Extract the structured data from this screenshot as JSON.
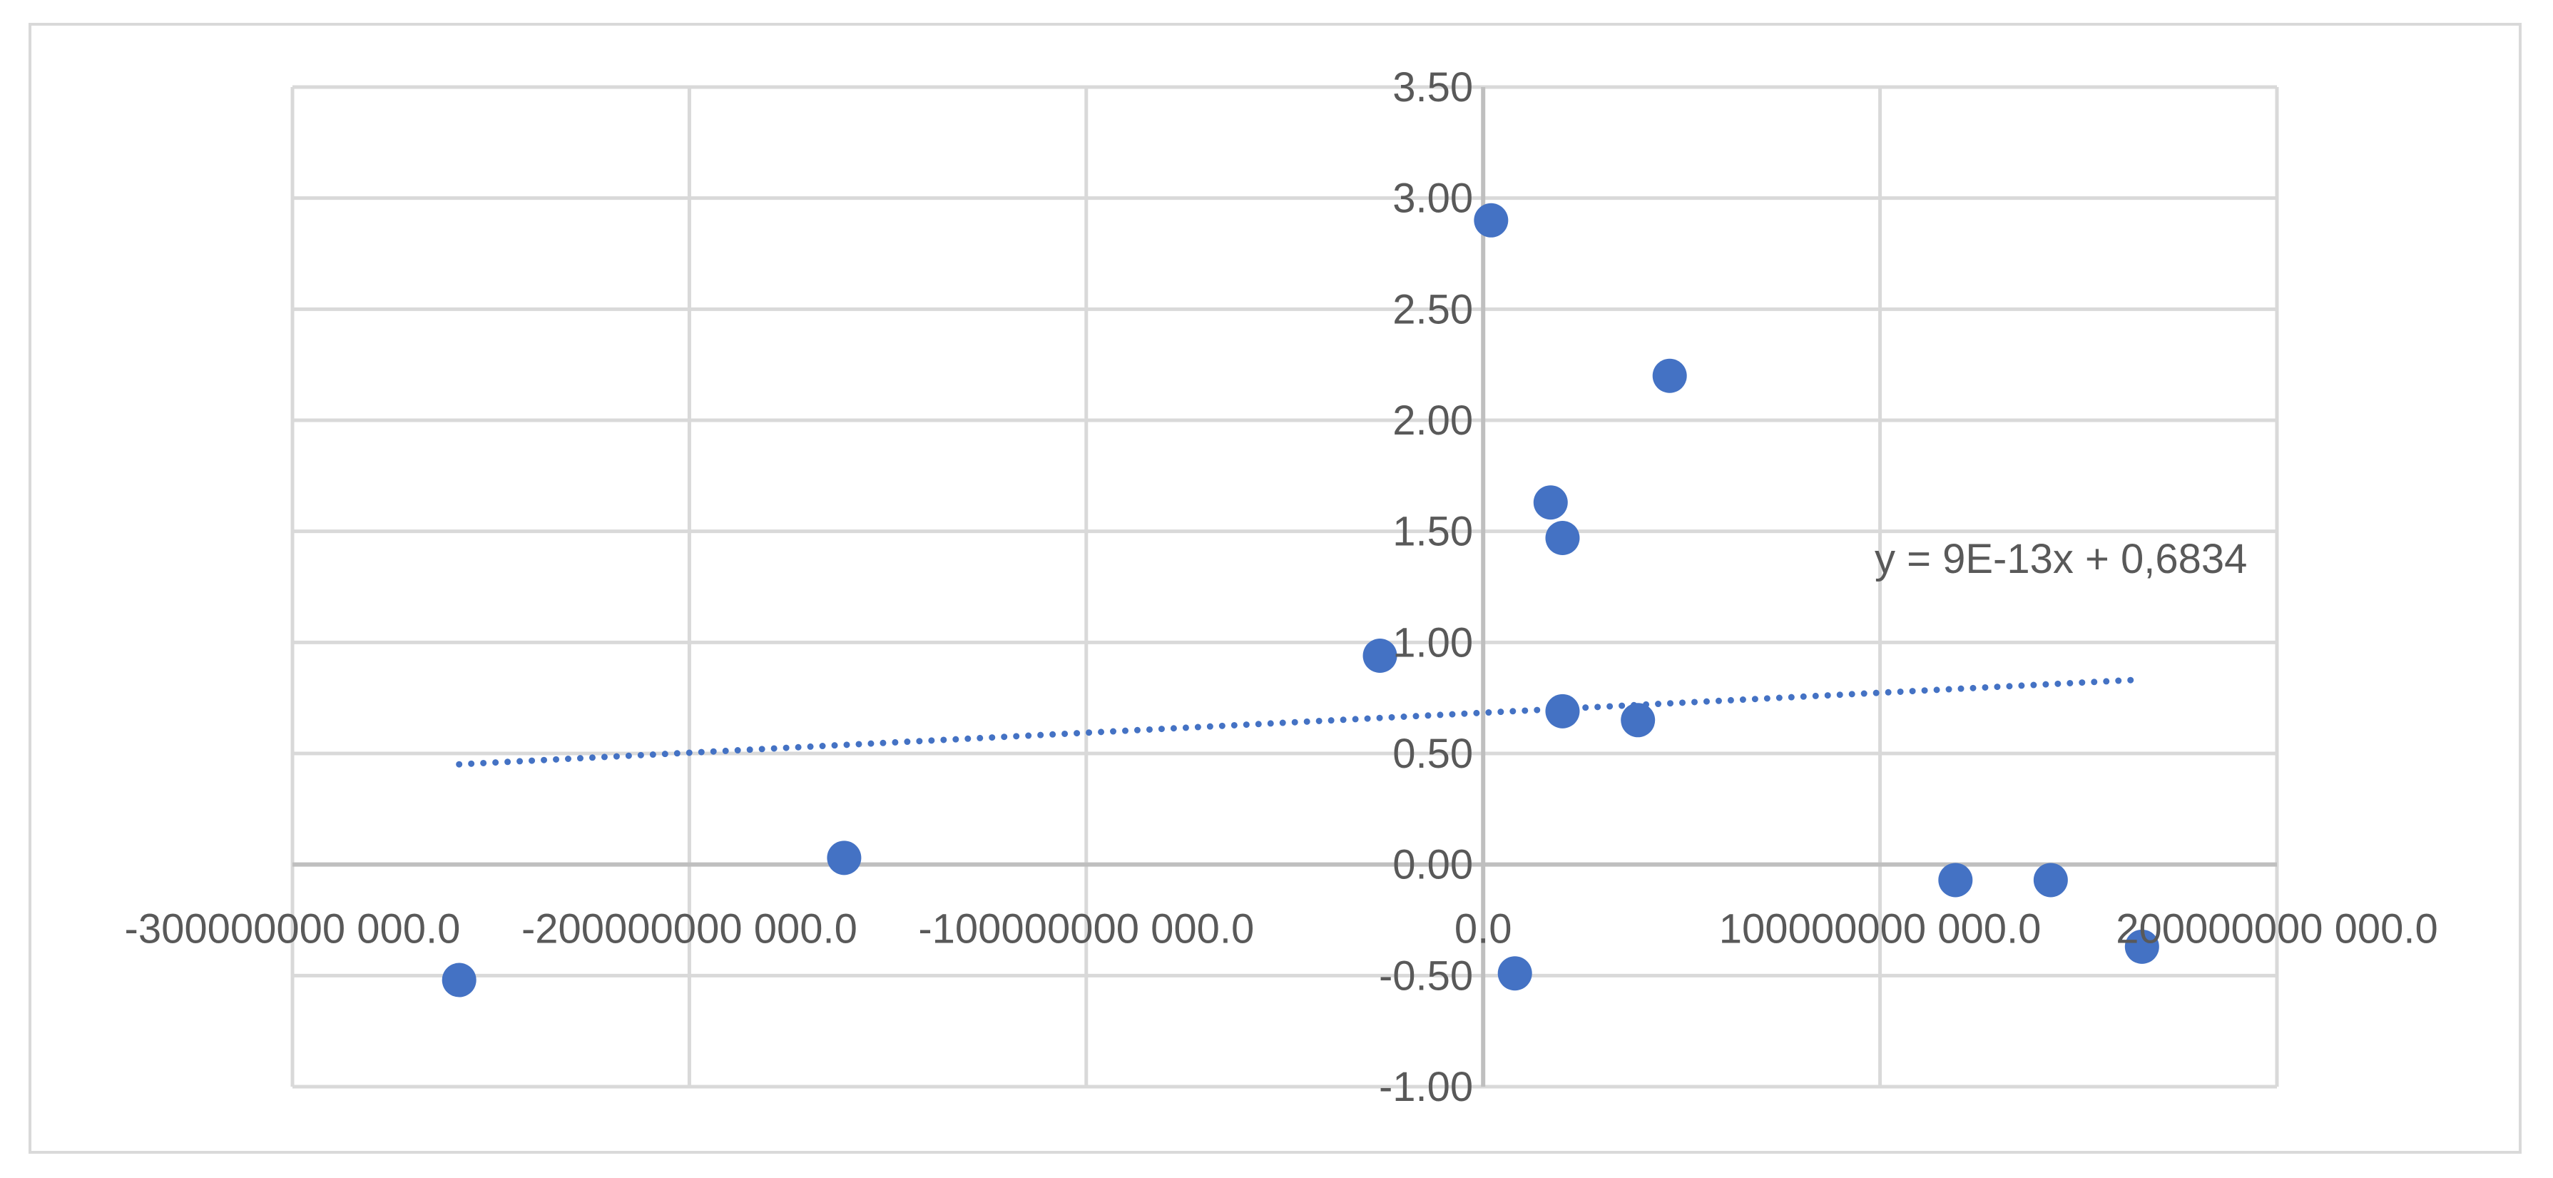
{
  "chart_data": {
    "type": "scatter",
    "title": "",
    "xlabel": "",
    "ylabel": "",
    "xlim": [
      -300000000000,
      200000000000
    ],
    "ylim": [
      -1.0,
      3.5
    ],
    "x_ticks": [
      -300000000000,
      -200000000000,
      -100000000000,
      0,
      100000000000,
      200000000000
    ],
    "x_tick_labels": [
      "-300000000 000.0",
      "-200000000 000.0",
      "-100000000 000.0",
      "0.0",
      "100000000 000.0",
      "200000000 000.0"
    ],
    "y_ticks": [
      -1.0,
      -0.5,
      0.0,
      0.5,
      1.0,
      1.5,
      2.0,
      2.5,
      3.0,
      3.5
    ],
    "y_tick_labels": [
      "-1.00",
      "-0.50",
      "0.00",
      "0.50",
      "1.00",
      "1.50",
      "2.00",
      "2.50",
      "3.00",
      "3.50"
    ],
    "grid": true,
    "marker_color": "#4472c4",
    "gridline_color": "#d9d9d9",
    "axis_line_color": "#bfbfbf",
    "series": [
      {
        "points": [
          {
            "x": -258000000000,
            "y": -0.52
          },
          {
            "x": -161000000000,
            "y": 0.03
          },
          {
            "x": -26000000000,
            "y": 0.94
          },
          {
            "x": 2000000000,
            "y": 2.9
          },
          {
            "x": 8000000000,
            "y": -0.49
          },
          {
            "x": 17000000000,
            "y": 1.63
          },
          {
            "x": 20000000000,
            "y": 1.47
          },
          {
            "x": 20000000000,
            "y": 0.69
          },
          {
            "x": 39000000000,
            "y": 0.65
          },
          {
            "x": 47000000000,
            "y": 2.2
          },
          {
            "x": 119000000000,
            "y": -0.07
          },
          {
            "x": 143000000000,
            "y": -0.07
          },
          {
            "x": 166000000000,
            "y": -0.37
          }
        ]
      }
    ],
    "trendline": {
      "style": "dotted",
      "color": "#4472c4",
      "slope": 9e-13,
      "intercept": 0.6834,
      "x_range": [
        -258000000000,
        166000000000
      ],
      "equation_label": "y = 9E-13x + 0,6834"
    }
  }
}
